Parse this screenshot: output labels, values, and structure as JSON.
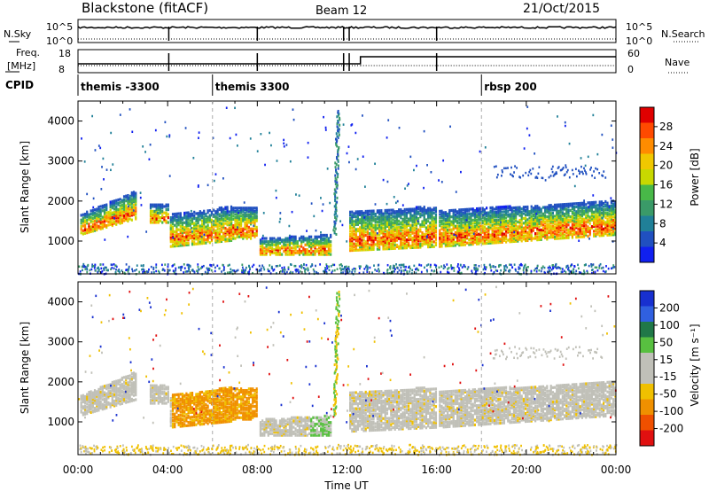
{
  "header": {
    "radar": "Blackstone (fitACF)",
    "beam": "Beam 12",
    "date": "21/Oct/2015"
  },
  "labels": {
    "nsky": "N.Sky",
    "nsearch": "N.Search",
    "freq_top": "Freq.",
    "freq_unit": "[MHz]",
    "nave": "Nave",
    "cpid": "CPID",
    "slant_range": "Slant Range [km]",
    "power_title": "Power [dB]",
    "velocity_title": "Velocity [m s⁻¹]",
    "time_axis": "Time UT"
  },
  "noise_panel": {
    "left_ticks": [
      "10^5",
      "10^0"
    ],
    "right_ticks": [
      "10^5",
      "10^0"
    ]
  },
  "freq_panel": {
    "left_ticks": [
      "18",
      "8"
    ],
    "right_ticks": [
      "60",
      "0"
    ]
  },
  "cpid_segments": [
    {
      "label": "themis -3300",
      "start_hour": 0
    },
    {
      "label": "themis 3300",
      "start_hour": 6
    },
    {
      "label": "rbsp 200",
      "start_hour": 18
    }
  ],
  "chart_data": [
    {
      "type": "heatmap",
      "name": "power",
      "x_range_hours": [
        0,
        24
      ],
      "ylim": [
        180,
        4500
      ],
      "yticks": [
        1000,
        2000,
        3000,
        4000
      ],
      "xtick_labels": [
        "00:00",
        "04:00",
        "08:00",
        "12:00",
        "16:00",
        "20:00",
        "00:00"
      ],
      "colorbar": {
        "labels": [
          "28",
          "24",
          "20",
          "16",
          "12",
          "8",
          "4"
        ],
        "colors": [
          "#e00000",
          "#ff4a00",
          "#ff8c00",
          "#f0c800",
          "#c8d800",
          "#48b848",
          "#3a9a68",
          "#208098",
          "#2050c0",
          "#1020f0"
        ]
      }
    },
    {
      "type": "heatmap",
      "name": "velocity",
      "x_range_hours": [
        0,
        24
      ],
      "ylim": [
        180,
        4500
      ],
      "yticks": [
        1000,
        2000,
        3000,
        4000
      ],
      "xtick_labels": [
        "00:00",
        "04:00",
        "08:00",
        "12:00",
        "16:00",
        "20:00",
        "00:00"
      ],
      "colorbar": {
        "labels": [
          "200",
          "100",
          "50",
          "15",
          "-15",
          "-50",
          "-100",
          "-200"
        ],
        "colors": [
          "#1830d0",
          "#3060e0",
          "#207848",
          "#58c040",
          "#c0c0b8",
          "#c0c0b8",
          "#f0c000",
          "#f09000",
          "#f05000",
          "#e01010"
        ]
      }
    }
  ]
}
